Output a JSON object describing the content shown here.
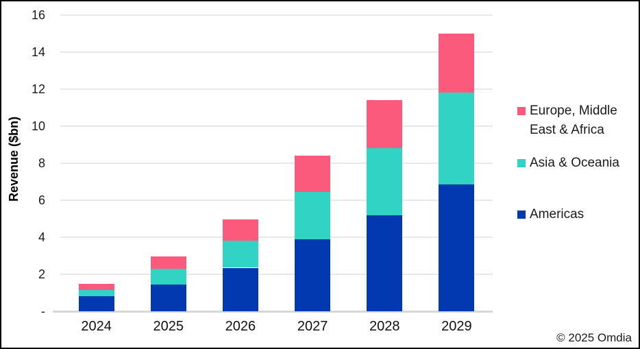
{
  "figure": {
    "copyright": "© 2025 Omdia"
  },
  "chart_data": {
    "type": "bar",
    "stacked": true,
    "ylabel": "Revenue ($bn)",
    "xlabel": "",
    "categories": [
      "2024",
      "2025",
      "2026",
      "2027",
      "2028",
      "2029"
    ],
    "series": [
      {
        "name": "Americas",
        "color": "#0238b0",
        "values": [
          0.8,
          1.45,
          2.35,
          3.9,
          5.2,
          6.85
        ]
      },
      {
        "name": "Asia & Oceania",
        "color": "#31d4c4",
        "values": [
          0.35,
          0.85,
          1.45,
          2.55,
          3.6,
          4.95
        ]
      },
      {
        "name": "Europe, Middle East & Africa",
        "color": "#fc5a7d",
        "values": [
          0.35,
          0.65,
          1.15,
          1.95,
          2.6,
          3.2
        ]
      }
    ],
    "totals": [
      1.5,
      2.95,
      4.95,
      8.4,
      11.4,
      15.0
    ],
    "ylim": [
      0,
      16
    ],
    "y_ticks": [
      {
        "value": 0,
        "label": "-"
      },
      {
        "value": 2,
        "label": "2"
      },
      {
        "value": 4,
        "label": "4"
      },
      {
        "value": 6,
        "label": "6"
      },
      {
        "value": 8,
        "label": "8"
      },
      {
        "value": 10,
        "label": "10"
      },
      {
        "value": 12,
        "label": "12"
      },
      {
        "value": 14,
        "label": "14"
      },
      {
        "value": 16,
        "label": "16"
      }
    ],
    "grid": true,
    "legend_position": "right",
    "legend": [
      {
        "label": "Europe, Middle East & Africa",
        "color": "#fc5a7d"
      },
      {
        "label": "Asia & Oceania",
        "color": "#31d4c4"
      },
      {
        "label": "Americas",
        "color": "#0238b0"
      }
    ]
  }
}
